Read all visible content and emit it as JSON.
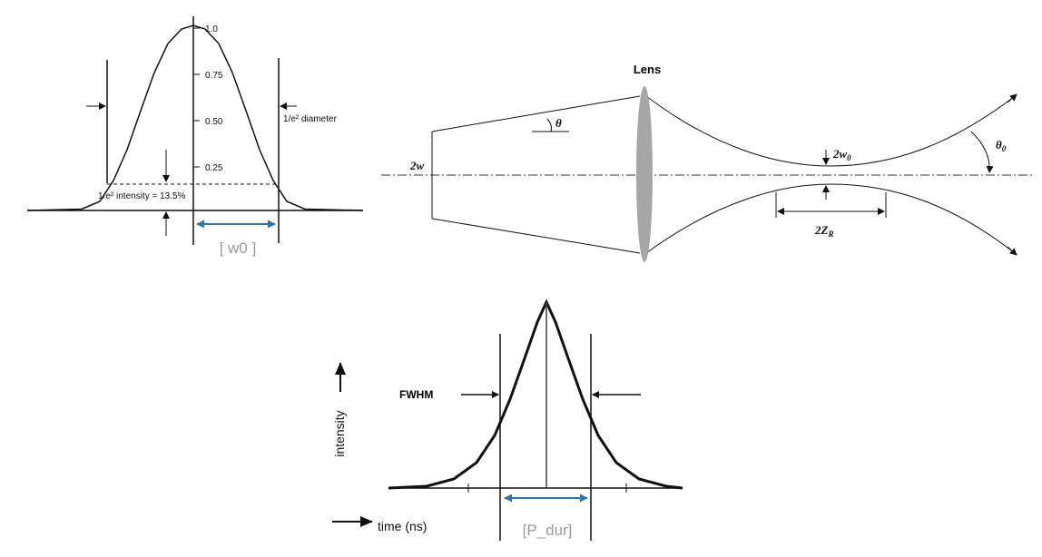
{
  "gaussian_beam_profile": {
    "ticks": [
      "1.0",
      "0.75",
      "0.50",
      "0.25"
    ],
    "diameter_label": "1/e² diameter",
    "intensity_label": "1/e² intensity = 13.5%",
    "width_param": "[ w0 ]"
  },
  "lens_diagram": {
    "lens_label": "Lens",
    "theta": "θ",
    "beam_2w": "2w",
    "waist_main": "2w",
    "waist_sub": "0",
    "divergence_main": "θ",
    "divergence_sub": "0",
    "rayleigh_main": "2Z",
    "rayleigh_sub": "R"
  },
  "pulse_profile": {
    "fwhm_label": "FWHM",
    "y_label": "intensity",
    "x_label": "time (ns)",
    "duration_param": "[P_dur]"
  },
  "colors": {
    "accent_arrow": "#2e75b6",
    "lens": "#a6a6a6",
    "param_text": "#9a9a9a"
  }
}
